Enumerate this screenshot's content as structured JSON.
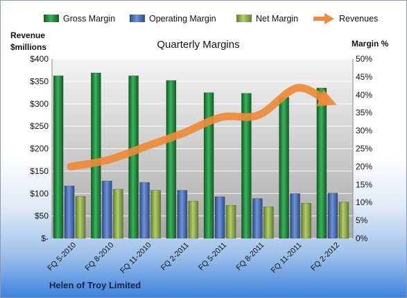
{
  "chart_data": {
    "type": "bar",
    "title": "Quarterly Margins",
    "footer": "Helen of Troy Limited",
    "y_left_label_line1": "Revenue",
    "y_left_label_line2": "$millions",
    "y_right_label": "Margin %",
    "categories": [
      "FQ 5-2010",
      "FQ 8-2010",
      "FQ 11-2010",
      "FQ 2-2011",
      "FQ 5-2011",
      "FQ 8-2011",
      "FQ 11-2011",
      "FQ 2-2012"
    ],
    "series": [
      {
        "name": "Gross Margin",
        "axis": "right",
        "kind": "bar",
        "color": "#1e8a3a",
        "values": [
          45.3,
          46.1,
          45.3,
          44.0,
          40.6,
          40.4,
          39.3,
          41.9
        ]
      },
      {
        "name": "Operating Margin",
        "axis": "right",
        "kind": "bar",
        "color": "#4a6fb8",
        "values": [
          14.6,
          16.0,
          15.6,
          13.4,
          11.6,
          11.1,
          12.5,
          12.6
        ]
      },
      {
        "name": "Net Margin",
        "axis": "right",
        "kind": "bar",
        "color": "#8fb04a",
        "values": [
          11.7,
          13.7,
          13.4,
          10.4,
          9.2,
          8.8,
          9.8,
          10.1
        ]
      },
      {
        "name": "Revenues",
        "axis": "left",
        "kind": "line",
        "color": "#ee8a3a",
        "values": [
          160,
          175,
          205,
          235,
          270,
          275,
          335,
          300
        ]
      }
    ],
    "y_left": {
      "min": 0,
      "max": 400,
      "step": 50,
      "tick_labels": [
        "$-",
        "$50",
        "$100",
        "$150",
        "$200",
        "$250",
        "$300",
        "$350",
        "$400"
      ]
    },
    "y_right": {
      "min": 0,
      "max": 50,
      "step": 5,
      "tick_labels": [
        "0%",
        "5%",
        "10%",
        "15%",
        "20%",
        "25%",
        "30%",
        "35%",
        "40%",
        "45%",
        "50%"
      ]
    },
    "grid": true,
    "legend_position": "top"
  }
}
